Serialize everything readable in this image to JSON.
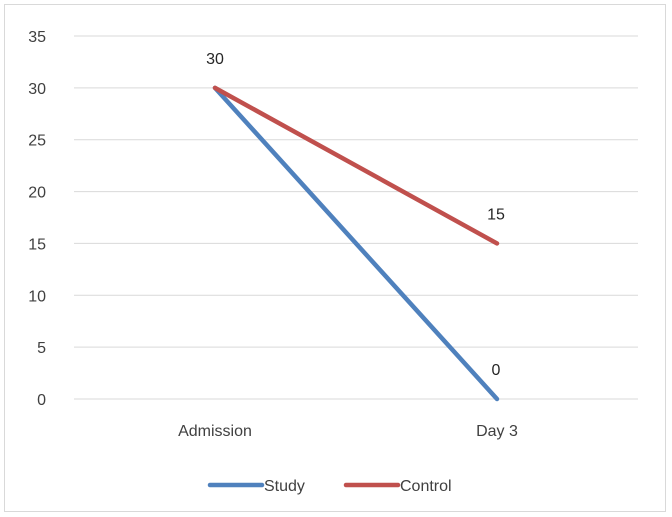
{
  "chart_data": {
    "type": "line",
    "title": "",
    "xlabel": "",
    "ylabel": "",
    "categories": [
      "Admission",
      "Day 3"
    ],
    "ylim": [
      0,
      35
    ],
    "yticks": [
      0,
      5,
      10,
      15,
      20,
      25,
      30,
      35
    ],
    "grid": true,
    "legend_position": "bottom",
    "series": [
      {
        "name": "Study",
        "values": [
          30,
          0
        ],
        "color": "#4f81bd",
        "data_labels": [
          "",
          "0"
        ]
      },
      {
        "name": "Control",
        "values": [
          30,
          15
        ],
        "color": "#c0504d",
        "data_labels": [
          "30",
          "15"
        ]
      }
    ]
  }
}
